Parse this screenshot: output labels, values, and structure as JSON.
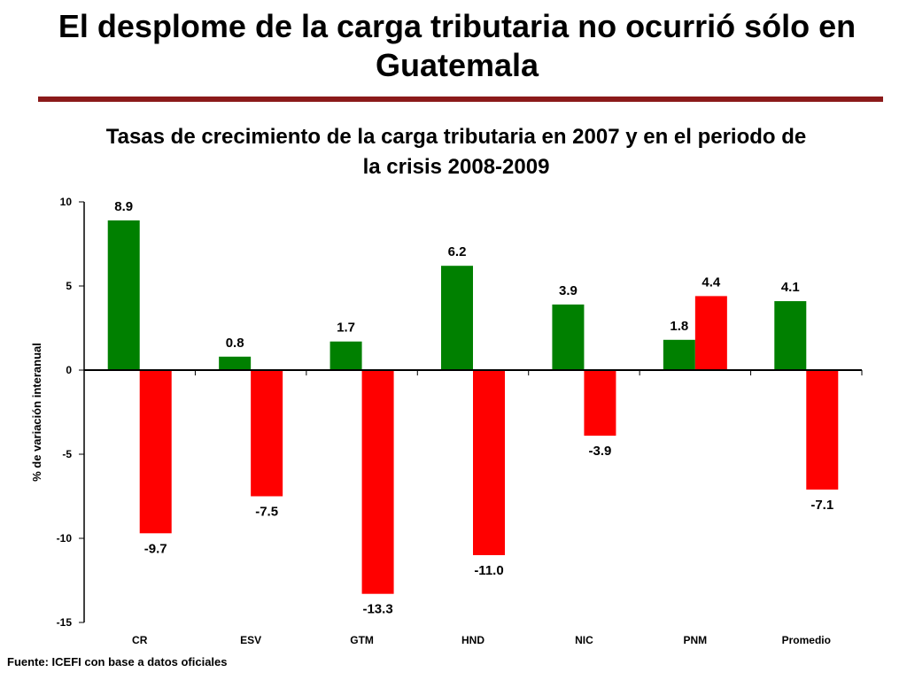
{
  "slide": {
    "title": "El desplome de la carga tributaria no ocurrió sólo en Guatemala",
    "rule_color": "#8b1a1a"
  },
  "source": "Fuente: ICEFI con base a datos oficiales",
  "chart_data": {
    "type": "bar",
    "title": "Tasas de crecimiento de la carga tributaria en 2007  y en el periodo de la crisis 2008-2009",
    "ylabel": "% de variación interanual",
    "xlabel": "",
    "ylim": [
      -15,
      10
    ],
    "yticks": [
      10,
      5,
      0,
      -5,
      -10,
      -15
    ],
    "grid": false,
    "categories": [
      "CR",
      "ESV",
      "GTM",
      "HND",
      "NIC",
      "PNM",
      "Promedio"
    ],
    "series": [
      {
        "color": "#008000",
        "values": [
          8.9,
          0.8,
          1.7,
          6.2,
          3.9,
          1.8,
          4.1
        ],
        "labels": [
          "8.9",
          "0.8",
          "1.7",
          "6.2",
          "3.9",
          "1.8",
          "4.1"
        ]
      },
      {
        "color": "#ff0000",
        "values": [
          -9.7,
          -7.5,
          -13.3,
          -11.0,
          -3.9,
          4.4,
          -7.1
        ],
        "labels": [
          "-9.7",
          "-7.5",
          "-13.3",
          "-11.0",
          "-3.9",
          "4.4",
          "-7.1"
        ]
      }
    ]
  }
}
